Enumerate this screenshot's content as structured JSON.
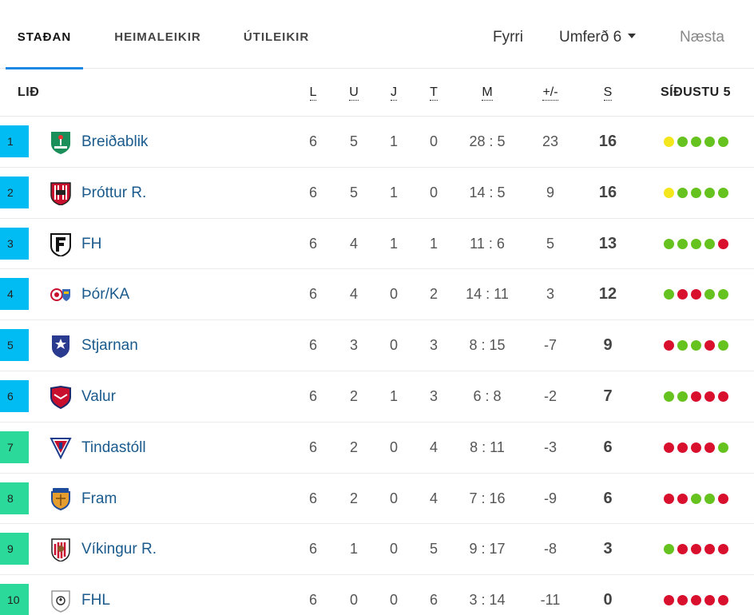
{
  "tabs": [
    {
      "label": "STAÐAN",
      "active": true
    },
    {
      "label": "HEIMALEIKIR",
      "active": false
    },
    {
      "label": "ÚTILEIKIR",
      "active": false
    }
  ],
  "round_nav": {
    "prev_label": "Fyrri",
    "current_label": "Umferð 6",
    "next_label": "Næsta"
  },
  "columns": {
    "team": "LIÐ",
    "played": "L",
    "won": "U",
    "drawn": "J",
    "lost": "T",
    "goals": "M",
    "diff": "+/-",
    "points": "S",
    "last5": "SÍÐUSTU 5"
  },
  "colors": {
    "rank_blue": "#00bcf2",
    "rank_green": "#2bd99a",
    "form_win": "#66c21f",
    "form_draw": "#f3e61c",
    "form_loss": "#d8102d",
    "accent": "#1e88e5"
  },
  "rows": [
    {
      "rank": "1",
      "rank_style": "blue",
      "team": "Breiðablik",
      "crest": "breidablik-crest-icon",
      "played": "6",
      "won": "5",
      "drawn": "1",
      "lost": "0",
      "goals": "28 : 5",
      "diff": "23",
      "points": "16",
      "form": [
        "D",
        "W",
        "W",
        "W",
        "W"
      ]
    },
    {
      "rank": "2",
      "rank_style": "blue",
      "team": "Þróttur R.",
      "crest": "throttur-crest-icon",
      "played": "6",
      "won": "5",
      "drawn": "1",
      "lost": "0",
      "goals": "14 : 5",
      "diff": "9",
      "points": "16",
      "form": [
        "D",
        "W",
        "W",
        "W",
        "W"
      ]
    },
    {
      "rank": "3",
      "rank_style": "blue",
      "team": "FH",
      "crest": "fh-crest-icon",
      "played": "6",
      "won": "4",
      "drawn": "1",
      "lost": "1",
      "goals": "11 : 6",
      "diff": "5",
      "points": "13",
      "form": [
        "W",
        "W",
        "W",
        "W",
        "L"
      ]
    },
    {
      "rank": "4",
      "rank_style": "blue",
      "team": "Þór/KA",
      "crest": "thor-ka-crest-icon",
      "played": "6",
      "won": "4",
      "drawn": "0",
      "lost": "2",
      "goals": "14 : 11",
      "diff": "3",
      "points": "12",
      "form": [
        "W",
        "L",
        "L",
        "W",
        "W"
      ]
    },
    {
      "rank": "5",
      "rank_style": "blue",
      "team": "Stjarnan",
      "crest": "stjarnan-crest-icon",
      "played": "6",
      "won": "3",
      "drawn": "0",
      "lost": "3",
      "goals": "8 : 15",
      "diff": "-7",
      "points": "9",
      "form": [
        "L",
        "W",
        "W",
        "L",
        "W"
      ]
    },
    {
      "rank": "6",
      "rank_style": "blue",
      "team": "Valur",
      "crest": "valur-crest-icon",
      "played": "6",
      "won": "2",
      "drawn": "1",
      "lost": "3",
      "goals": "6 : 8",
      "diff": "-2",
      "points": "7",
      "form": [
        "W",
        "W",
        "L",
        "L",
        "L"
      ]
    },
    {
      "rank": "7",
      "rank_style": "green",
      "team": "Tindastóll",
      "crest": "tindastoll-crest-icon",
      "played": "6",
      "won": "2",
      "drawn": "0",
      "lost": "4",
      "goals": "8 : 11",
      "diff": "-3",
      "points": "6",
      "form": [
        "L",
        "L",
        "L",
        "L",
        "W"
      ]
    },
    {
      "rank": "8",
      "rank_style": "green",
      "team": "Fram",
      "crest": "fram-crest-icon",
      "played": "6",
      "won": "2",
      "drawn": "0",
      "lost": "4",
      "goals": "7 : 16",
      "diff": "-9",
      "points": "6",
      "form": [
        "L",
        "L",
        "W",
        "W",
        "L"
      ]
    },
    {
      "rank": "9",
      "rank_style": "green",
      "team": "Víkingur R.",
      "crest": "vikingur-crest-icon",
      "played": "6",
      "won": "1",
      "drawn": "0",
      "lost": "5",
      "goals": "9 : 17",
      "diff": "-8",
      "points": "3",
      "form": [
        "W",
        "L",
        "L",
        "L",
        "L"
      ]
    },
    {
      "rank": "10",
      "rank_style": "green",
      "team": "FHL",
      "crest": "fhl-crest-icon",
      "played": "6",
      "won": "0",
      "drawn": "0",
      "lost": "6",
      "goals": "3 : 14",
      "diff": "-11",
      "points": "0",
      "form": [
        "L",
        "L",
        "L",
        "L",
        "L"
      ]
    }
  ]
}
